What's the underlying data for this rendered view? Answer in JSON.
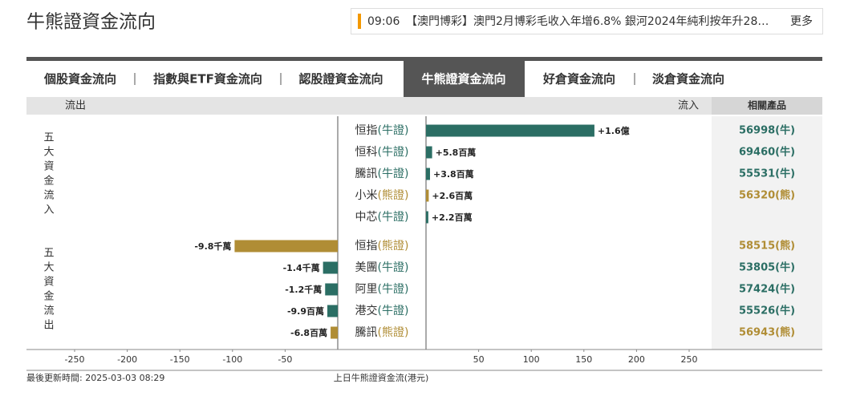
{
  "header": {
    "title": "牛熊證資金流向",
    "ticker_time": "09:06",
    "ticker_text": "【澳門博彩】澳門2月博彩毛收入年增6.8% 銀河2024年純利按年升28…",
    "ticker_more": "更多"
  },
  "tabs": [
    "個股資金流向",
    "指數與ETF資金流向",
    "認股證資金流向",
    "牛熊證資金流向",
    "好倉資金流向",
    "淡倉資金流向"
  ],
  "active_tab": 3,
  "chart_data": {
    "type": "diverging-bar",
    "header_labels": [
      "流出",
      "流入",
      "相關產品"
    ],
    "group_labels": [
      "五大資金流入",
      "五大資金流出"
    ],
    "categories": [
      "恒指",
      "恒科",
      "騰訊",
      "小米",
      "中芯",
      "恒指",
      "美團",
      "阿里",
      "港交",
      "騰訊"
    ],
    "kinds": [
      "(牛證)",
      "(牛證)",
      "(牛證)",
      "(熊證)",
      "(牛證)",
      "(熊證)",
      "(牛證)",
      "(牛證)",
      "(牛證)",
      "(熊證)"
    ],
    "values": [
      160,
      5.8,
      3.8,
      2.6,
      2.2,
      -98,
      -14,
      -12,
      -9.9,
      -6.8
    ],
    "value_labels": [
      "+1.6億",
      "+5.8百萬",
      "+3.8百萬",
      "+2.6百萬",
      "+2.2百萬",
      "-9.8千萬",
      "-1.4千萬",
      "-1.2千萬",
      "-9.9百萬",
      "-6.8百萬"
    ],
    "products": [
      "56998(牛)",
      "69460(牛)",
      "55531(牛)",
      "56320(熊)",
      null,
      "58515(熊)",
      "53805(牛)",
      "57424(牛)",
      "55526(牛)",
      "56943(熊)"
    ],
    "colors": [
      "#2b6e64",
      "#2b6e64",
      "#2b6e64",
      "#b08d35",
      "#2b6e64",
      "#b08d35",
      "#2b6e64",
      "#2b6e64",
      "#2b6e64",
      "#b08d35"
    ],
    "xlim": [
      -250,
      250
    ],
    "xticks": [
      -250,
      -200,
      -150,
      -100,
      -50,
      50,
      100,
      150,
      200,
      250
    ],
    "footer_left": "最後更新時間: 2025-03-03 08:29",
    "footer_center": "上日牛熊證資金流(港元)"
  }
}
